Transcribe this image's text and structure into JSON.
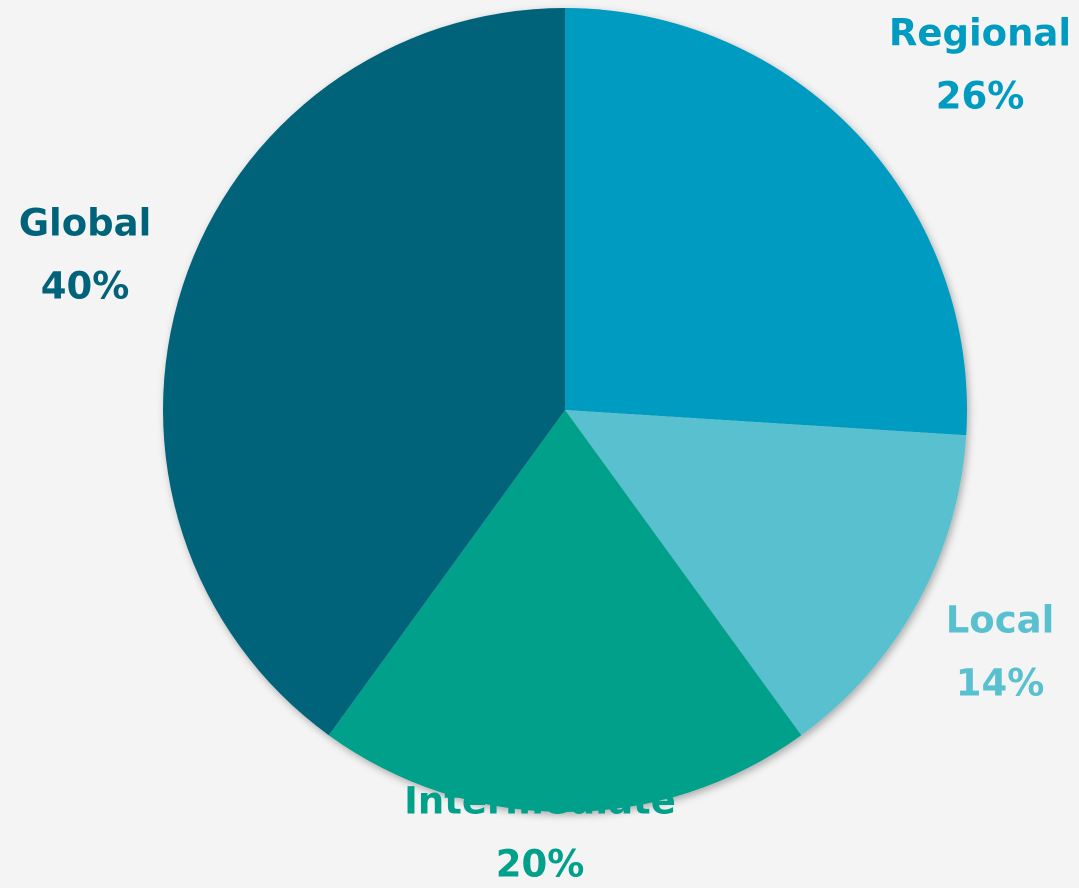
{
  "chart_data": {
    "type": "pie",
    "categories": [
      "Regional",
      "Local",
      "Intermediate",
      "Global"
    ],
    "values": [
      26,
      14,
      20,
      40
    ],
    "value_labels": [
      "26%",
      "14%",
      "20%",
      "40%"
    ],
    "colors": [
      "#009bc0",
      "#59c0cf",
      "#00a08a",
      "#00637a"
    ]
  }
}
